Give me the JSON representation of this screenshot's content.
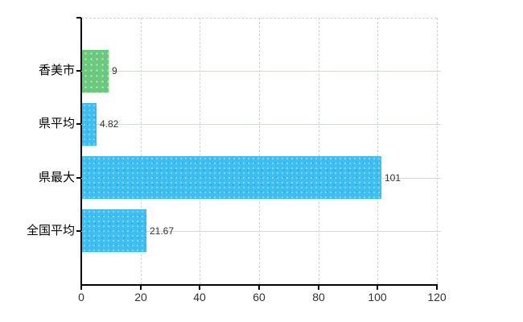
{
  "chart_data": {
    "type": "bar",
    "orientation": "horizontal",
    "title": "",
    "categories": [
      "香美市",
      "県平均",
      "県最大",
      "全国平均"
    ],
    "values": [
      9,
      4.82,
      101,
      21.67
    ],
    "value_labels": [
      "9",
      "4.82",
      "101",
      "21.67"
    ],
    "bar_colors": [
      "#68c981",
      "#3cbef2",
      "#3cbef2",
      "#3cbef2"
    ],
    "xlim": [
      0,
      120
    ],
    "x_ticks": [
      0,
      20,
      40,
      60,
      80,
      100,
      120
    ],
    "x_tick_labels": [
      "0",
      "20",
      "40",
      "60",
      "80",
      "100",
      "120"
    ],
    "xlabel": "",
    "ylabel": "",
    "grid": true,
    "legend": false,
    "colors": {
      "bar_green": "#68c981",
      "bar_blue": "#3cbef2",
      "axis": "#000000",
      "gridline_vertical": "#d7ced7",
      "gridline_horizontal": "#d2ddd2",
      "border_dashed": "#cfcfcf",
      "tick_text": "#333333",
      "category_text": "#000000",
      "background": "#ffffff"
    }
  }
}
